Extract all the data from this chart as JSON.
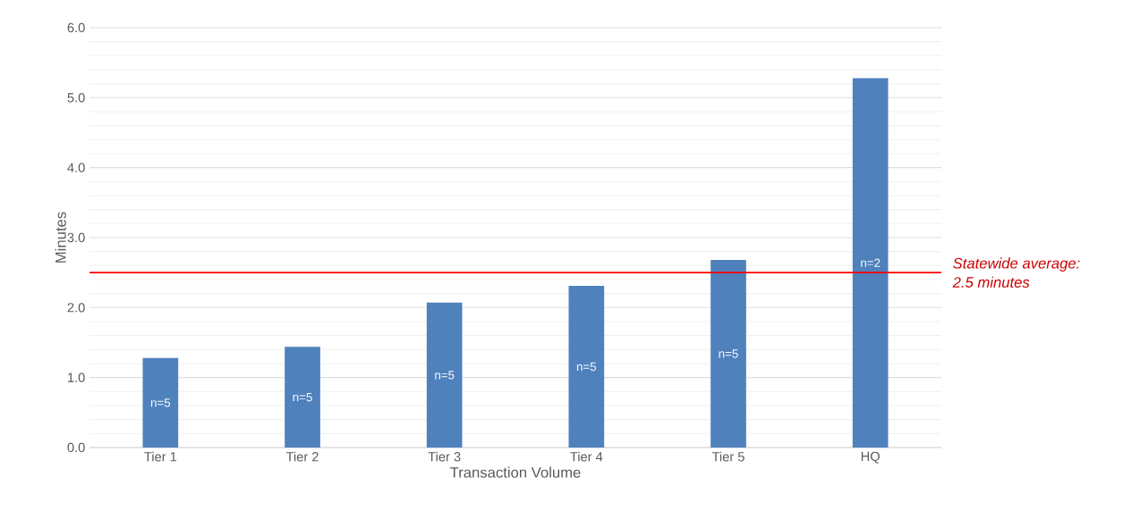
{
  "chart_data": {
    "type": "bar",
    "xlabel": "Transaction Volume",
    "ylabel": "Minutes",
    "categories": [
      "Tier 1",
      "Tier 2",
      "Tier 3",
      "Tier 4",
      "Tier 5",
      "HQ"
    ],
    "values": [
      1.28,
      1.44,
      2.07,
      2.31,
      2.68,
      5.28
    ],
    "color": "#4f81bd",
    "ylim": [
      0,
      6
    ],
    "yticks": [
      {
        "value": 0,
        "label": "0.0"
      },
      {
        "value": 1,
        "label": "1.0"
      },
      {
        "value": 2,
        "label": "2.0"
      },
      {
        "value": 3,
        "label": "3.0"
      },
      {
        "value": 4,
        "label": "4.0"
      },
      {
        "value": 5,
        "label": "5.0"
      },
      {
        "value": 6,
        "label": "6.0"
      }
    ],
    "grid": "y",
    "ref_lines": [
      {
        "axis": "y",
        "value": 2.5,
        "label": "Statewide average: 2.5 minutes",
        "color": "#ff0000"
      }
    ],
    "annotations": [
      "n=5",
      "n=5",
      "n=5",
      "n=5",
      "n=5",
      "n=2"
    ]
  }
}
